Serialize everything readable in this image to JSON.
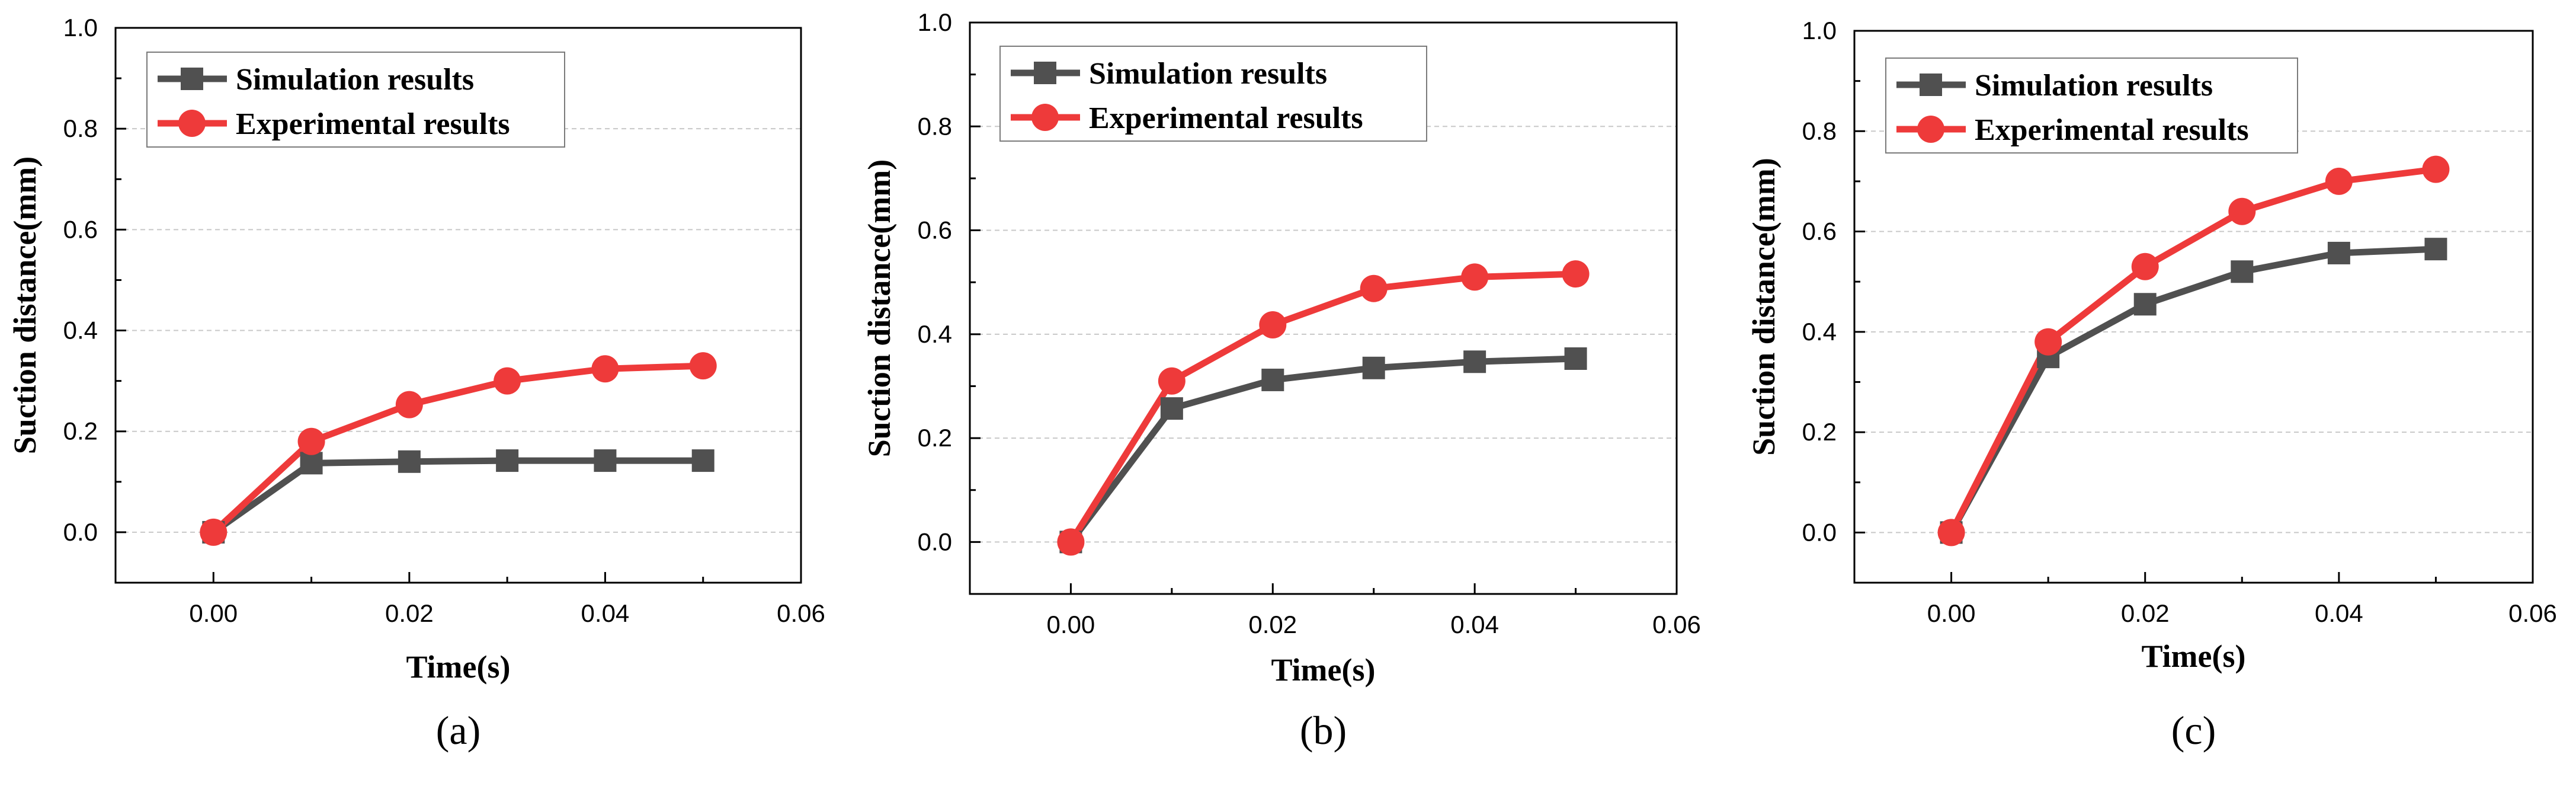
{
  "figure": {
    "panels": [
      {
        "label": "(a)"
      },
      {
        "label": "(b)"
      },
      {
        "label": "(c)"
      }
    ]
  },
  "colors": {
    "simulation": "#505050",
    "experimental": "#ee3a3a",
    "grid": "#c8c8c8",
    "axis": "#000000"
  },
  "chart_data": [
    {
      "type": "line",
      "panel_label": "(a)",
      "xlabel": "Time(s)",
      "ylabel": "Suction distance(mm)",
      "xlim": [
        -0.01,
        0.06
      ],
      "ylim": [
        -0.1,
        1.0
      ],
      "xticks": [
        "0.00",
        "0.02",
        "0.04",
        "0.06"
      ],
      "yticks": [
        "0.0",
        "0.2",
        "0.4",
        "0.6",
        "0.8",
        "1.0"
      ],
      "grid": "horizontal dashed",
      "legend_position": "top-left",
      "x": [
        0.0,
        0.01,
        0.02,
        0.03,
        0.04,
        0.05
      ],
      "series": [
        {
          "name": "Simulation results",
          "marker": "square",
          "values": [
            0.0,
            0.137,
            0.14,
            0.142,
            0.142,
            0.142
          ]
        },
        {
          "name": "Experimental results",
          "marker": "circle",
          "values": [
            0.0,
            0.18,
            0.253,
            0.3,
            0.324,
            0.33
          ]
        }
      ]
    },
    {
      "type": "line",
      "panel_label": "(b)",
      "xlabel": "Time(s)",
      "ylabel": "Suction distance(mm)",
      "xlim": [
        -0.01,
        0.06
      ],
      "ylim": [
        -0.1,
        1.0
      ],
      "xticks": [
        "0.00",
        "0.02",
        "0.04",
        "0.06"
      ],
      "yticks": [
        "0.0",
        "0.2",
        "0.4",
        "0.6",
        "0.8",
        "1.0"
      ],
      "grid": "horizontal dashed",
      "legend_position": "top-left",
      "x": [
        0.0,
        0.01,
        0.02,
        0.03,
        0.04,
        0.05
      ],
      "series": [
        {
          "name": "Simulation results",
          "marker": "square",
          "values": [
            0.0,
            0.257,
            0.312,
            0.335,
            0.347,
            0.353
          ]
        },
        {
          "name": "Experimental results",
          "marker": "circle",
          "values": [
            0.0,
            0.31,
            0.418,
            0.488,
            0.51,
            0.516
          ]
        }
      ]
    },
    {
      "type": "line",
      "panel_label": "(c)",
      "xlabel": "Time(s)",
      "ylabel": "Suction distance(mm)",
      "xlim": [
        -0.01,
        0.06
      ],
      "ylim": [
        -0.1,
        1.0
      ],
      "xticks": [
        "0.00",
        "0.02",
        "0.04",
        "0.06"
      ],
      "yticks": [
        "0.0",
        "0.2",
        "0.4",
        "0.6",
        "0.8",
        "1.0"
      ],
      "grid": "horizontal dashed",
      "legend_position": "top-left",
      "x": [
        0.0,
        0.01,
        0.02,
        0.03,
        0.04,
        0.05
      ],
      "series": [
        {
          "name": "Simulation results",
          "marker": "square",
          "values": [
            0.0,
            0.35,
            0.455,
            0.52,
            0.557,
            0.565
          ]
        },
        {
          "name": "Experimental results",
          "marker": "circle",
          "values": [
            0.0,
            0.38,
            0.53,
            0.64,
            0.7,
            0.724
          ]
        }
      ]
    }
  ]
}
